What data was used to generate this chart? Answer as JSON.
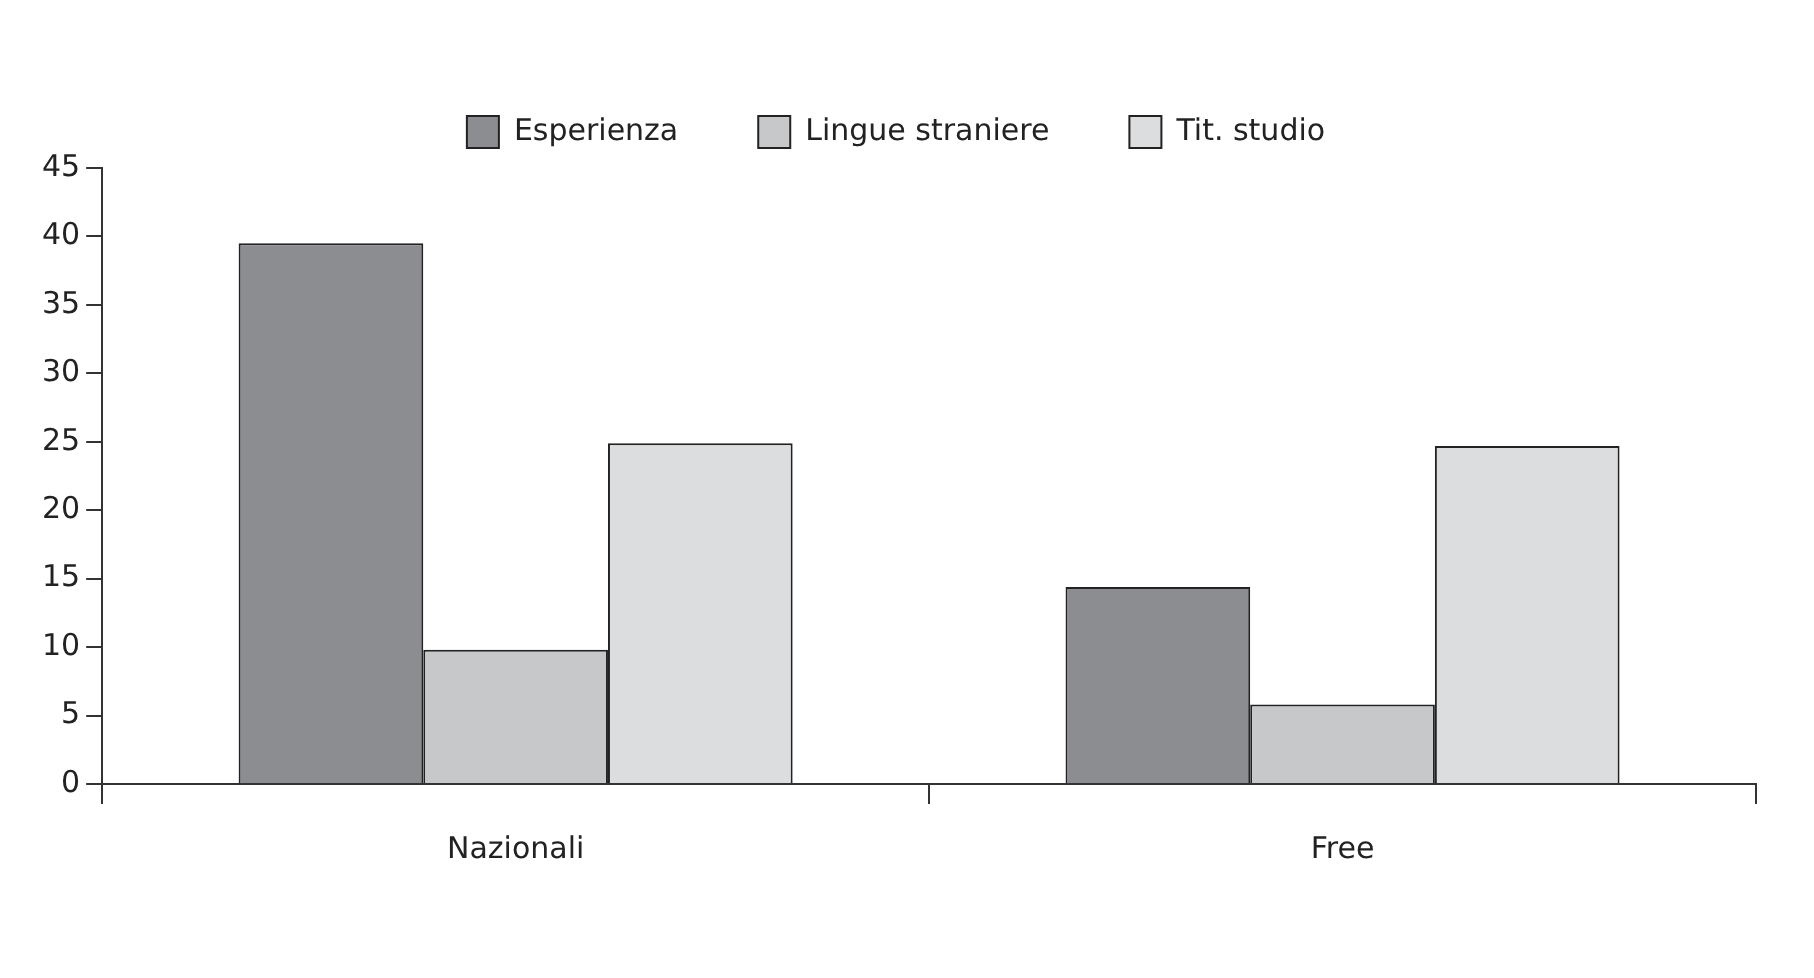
{
  "chart_data": {
    "type": "bar",
    "categories": [
      "Nazionali",
      "Free"
    ],
    "series": [
      {
        "name": "Esperienza",
        "color": "#8c8d91",
        "values": [
          39.5,
          14.4
        ]
      },
      {
        "name": "Lingue straniere",
        "color": "#c7c8ca",
        "values": [
          9.8,
          5.8
        ]
      },
      {
        "name": "Tit. studio",
        "color": "#dcdddf",
        "values": [
          24.9,
          24.7
        ]
      }
    ],
    "ylim": [
      0,
      45
    ],
    "yticks": [
      0,
      5,
      10,
      15,
      20,
      25,
      30,
      35,
      40,
      45
    ],
    "grid": false,
    "legend": "top"
  }
}
